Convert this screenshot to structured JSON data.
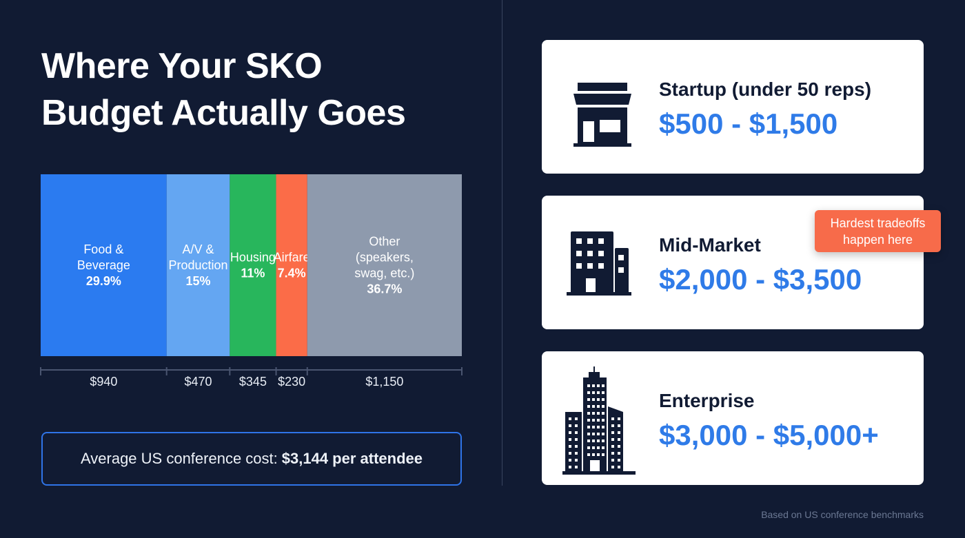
{
  "title_lines": [
    "Where Your SKO",
    "Budget Actually Goes"
  ],
  "chart_data": {
    "type": "bar",
    "orientation": "horizontal-stacked",
    "categories": [
      "Food & Beverage",
      "A/V & Production",
      "Housing",
      "Airfare",
      "Other (speakers, swag, etc.)"
    ],
    "label_lines": [
      [
        "Food &",
        "Beverage"
      ],
      [
        "A/V &",
        "Production"
      ],
      [
        "Housing"
      ],
      [
        "Airfare"
      ],
      [
        "Other",
        "(speakers,",
        "swag, etc.)"
      ]
    ],
    "percent_labels": [
      "29.9%",
      "15%",
      "11%",
      "7.4%",
      "36.7%"
    ],
    "percentages": [
      29.9,
      15,
      11,
      7.4,
      36.7
    ],
    "values": [
      940,
      470,
      345,
      230,
      1150
    ],
    "value_labels": [
      "$940",
      "$470",
      "$345",
      "$230",
      "$1,150"
    ],
    "colors": [
      "#2b7bf0",
      "#64a6f2",
      "#28b65c",
      "#fb6c48",
      "#8e9aad"
    ]
  },
  "average": {
    "prefix": "Average US conference cost:",
    "value": "$3,144 per attendee"
  },
  "tiers": [
    {
      "label": "Startup (under 50 reps)",
      "range": "$500 - $1,500",
      "icon": "storefront-icon"
    },
    {
      "label": "Mid-Market",
      "range": "$2,000 - $3,500",
      "icon": "office-building-icon"
    },
    {
      "label": "Enterprise",
      "range": "$3,000 - $5,000+",
      "icon": "skyscraper-icon"
    }
  ],
  "callout": [
    "Hardest tradeoffs",
    "happen here"
  ],
  "footnote": "Based on US conference benchmarks",
  "colors": {
    "background": "#111b33",
    "accent": "#2f7be8",
    "callout": "#f76b4a"
  }
}
